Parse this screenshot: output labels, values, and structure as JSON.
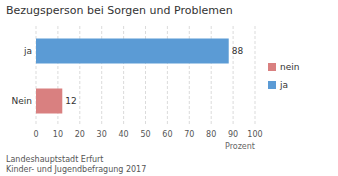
{
  "chart_data": {
    "type": "bar",
    "orientation": "horizontal",
    "stacked": true,
    "title": "Bezugsperson bei Sorgen und Problemen",
    "categories": [
      "Nein",
      "ja"
    ],
    "series": [
      {
        "name": "nein",
        "color": "#d98080",
        "values": [
          12,
          null
        ]
      },
      {
        "name": "ja",
        "color": "#5b9bd5",
        "values": [
          null,
          88
        ]
      }
    ],
    "xlabel": "Prozent",
    "xlim": [
      0,
      100
    ],
    "xticks": [
      0,
      10,
      20,
      30,
      40,
      50,
      60,
      70,
      80,
      90,
      100
    ],
    "grid": true,
    "legend": "right",
    "data_labels": true,
    "annotations": [
      "Landeshauptstadt Erfurt",
      "Kinder- und Jugendbefragung 2017"
    ]
  }
}
